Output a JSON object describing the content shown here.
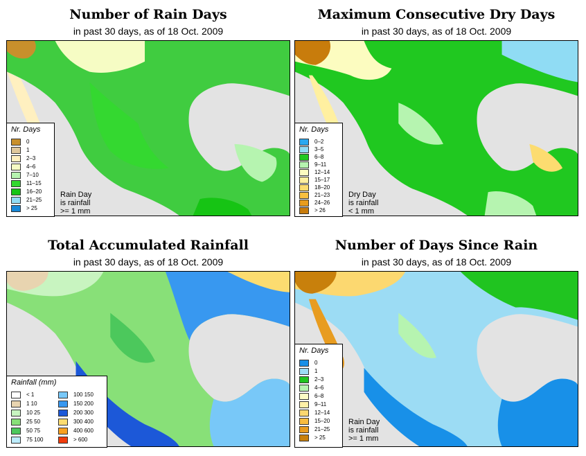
{
  "panels": [
    {
      "title": "Number of Rain Days",
      "subtitle": "in past 30 days, as of  18 Oct. 2009",
      "legend_title": "Nr. Days",
      "legend": [
        {
          "label": "0",
          "color": "#c8902c"
        },
        {
          "label": "1",
          "color": "#e0c89c"
        },
        {
          "label": "2–3",
          "color": "#fff0c0"
        },
        {
          "label": "4–6",
          "color": "#f6fcc4"
        },
        {
          "label": "7–10",
          "color": "#b6f4b0"
        },
        {
          "label": "11–15",
          "color": "#34d830"
        },
        {
          "label": "16–20",
          "color": "#16c414"
        },
        {
          "label": "21–25",
          "color": "#90dcf4"
        },
        {
          "label": "> 25",
          "color": "#1888d8"
        }
      ],
      "note_lines": [
        "Rain Day",
        "is rainfall",
        ">= 1 mm"
      ]
    },
    {
      "title": "Maximum Consecutive Dry Days",
      "subtitle": "in past 30 days, as of  18 Oct. 2009",
      "legend_title": "Nr. Days",
      "legend": [
        {
          "label": "0–2",
          "color": "#28a8f0"
        },
        {
          "label": "3–5",
          "color": "#90dcf4"
        },
        {
          "label": "6–8",
          "color": "#20c820"
        },
        {
          "label": "9–11",
          "color": "#b6f4b0"
        },
        {
          "label": "12–14",
          "color": "#fcfcc0"
        },
        {
          "label": "15–17",
          "color": "#fff0a0"
        },
        {
          "label": "18–20",
          "color": "#fcdc70"
        },
        {
          "label": "21–23",
          "color": "#f8c040"
        },
        {
          "label": "24–26",
          "color": "#e89c1c"
        },
        {
          "label": "> 26",
          "color": "#c87c0c"
        }
      ],
      "note_lines": [
        "Dry Day",
        "is rainfall",
        "< 1 mm"
      ]
    },
    {
      "title": "Total Accumulated Rainfall",
      "subtitle": "in past 30 days, as of  18 Oct. 2009",
      "legend_title": "Rainfall (mm)",
      "legend_left": [
        {
          "label": "< 1",
          "color": "#ffffff"
        },
        {
          "label": "1    10",
          "color": "#e8d4b0"
        },
        {
          "label": "10    25",
          "color": "#c8f4c0"
        },
        {
          "label": "25    50",
          "color": "#88e078"
        },
        {
          "label": "50    75",
          "color": "#4cc85c"
        },
        {
          "label": "75  100",
          "color": "#bcecfc"
        }
      ],
      "legend_right": [
        {
          "label": "100  150",
          "color": "#78c8f8"
        },
        {
          "label": "150  200",
          "color": "#3898f0"
        },
        {
          "label": "200  300",
          "color": "#1c58d8"
        },
        {
          "label": "300  400",
          "color": "#fcdc70"
        },
        {
          "label": "400  600",
          "color": "#f8a020"
        },
        {
          "label": "> 600",
          "color": "#f03c0c"
        }
      ]
    },
    {
      "title": "Number of Days Since Rain",
      "subtitle": "in past 30 days, as of  18 Oct. 2009",
      "legend_title": "Nr. Days",
      "legend": [
        {
          "label": "0",
          "color": "#1890e8"
        },
        {
          "label": "1",
          "color": "#9cdcf4"
        },
        {
          "label": "2–3",
          "color": "#20c420"
        },
        {
          "label": "4–6",
          "color": "#b6f4b0"
        },
        {
          "label": "6–8",
          "color": "#fcfcc4"
        },
        {
          "label": "9–11",
          "color": "#fff0a8"
        },
        {
          "label": "12–14",
          "color": "#fcd870"
        },
        {
          "label": "15–20",
          "color": "#f8bc40"
        },
        {
          "label": "21–25",
          "color": "#e89c20"
        },
        {
          "label": "> 25",
          "color": "#c8800c"
        }
      ],
      "note_lines": [
        "Rain Day",
        "is rainfall",
        ">= 1 mm"
      ]
    }
  ]
}
